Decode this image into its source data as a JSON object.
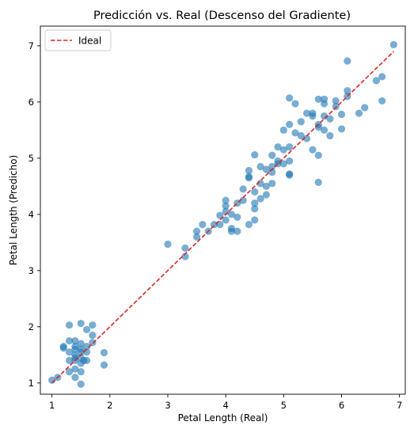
{
  "chart_data": {
    "type": "scatter",
    "title": "Predicción vs. Real (Descenso del Gradiente)",
    "xlabel": "Petal Length (Real)",
    "ylabel": "Petal Length (Predicho)",
    "xlim": [
      0.8,
      7.1
    ],
    "ylim": [
      0.8,
      7.35
    ],
    "xticks": [
      1,
      2,
      3,
      4,
      5,
      6,
      7
    ],
    "yticks": [
      1,
      2,
      3,
      4,
      5,
      6,
      7
    ],
    "grid": false,
    "legend": {
      "position": "top-left",
      "entries": [
        "Ideal"
      ]
    },
    "colors": {
      "points": "#1f77b4",
      "ideal_line": "#d62728"
    },
    "ideal_line": {
      "x": [
        1.0,
        6.9
      ],
      "y": [
        1.0,
        6.9
      ],
      "style": "dashed"
    },
    "points": [
      [
        1.0,
        1.05
      ],
      [
        1.1,
        1.1
      ],
      [
        1.2,
        1.62
      ],
      [
        1.2,
        1.65
      ],
      [
        1.3,
        1.2
      ],
      [
        1.3,
        1.4
      ],
      [
        1.3,
        1.55
      ],
      [
        1.3,
        1.75
      ],
      [
        1.3,
        2.03
      ],
      [
        1.4,
        1.1
      ],
      [
        1.4,
        1.25
      ],
      [
        1.4,
        1.4
      ],
      [
        1.4,
        1.5
      ],
      [
        1.4,
        1.6
      ],
      [
        1.4,
        1.65
      ],
      [
        1.4,
        1.75
      ],
      [
        1.4,
        1.45
      ],
      [
        1.5,
        0.98
      ],
      [
        1.5,
        1.2
      ],
      [
        1.5,
        1.35
      ],
      [
        1.5,
        1.45
      ],
      [
        1.5,
        1.55
      ],
      [
        1.5,
        1.6
      ],
      [
        1.5,
        1.7
      ],
      [
        1.5,
        2.06
      ],
      [
        1.55,
        1.4
      ],
      [
        1.6,
        1.4
      ],
      [
        1.6,
        1.55
      ],
      [
        1.6,
        1.65
      ],
      [
        1.6,
        1.95
      ],
      [
        1.7,
        1.72
      ],
      [
        1.7,
        1.85
      ],
      [
        1.7,
        2.03
      ],
      [
        1.9,
        1.32
      ],
      [
        1.9,
        1.54
      ],
      [
        3.0,
        3.47
      ],
      [
        3.3,
        3.25
      ],
      [
        3.3,
        3.4
      ],
      [
        3.5,
        3.6
      ],
      [
        3.5,
        3.7
      ],
      [
        3.6,
        3.82
      ],
      [
        3.7,
        3.7
      ],
      [
        3.8,
        3.82
      ],
      [
        3.9,
        3.82
      ],
      [
        3.9,
        3.98
      ],
      [
        4.0,
        4.05
      ],
      [
        4.0,
        4.15
      ],
      [
        4.0,
        4.25
      ],
      [
        4.0,
        3.9
      ],
      [
        4.1,
        3.7
      ],
      [
        4.1,
        3.75
      ],
      [
        4.1,
        4.0
      ],
      [
        4.2,
        3.7
      ],
      [
        4.2,
        3.95
      ],
      [
        4.2,
        4.2
      ],
      [
        4.3,
        4.45
      ],
      [
        4.3,
        4.25
      ],
      [
        4.4,
        3.82
      ],
      [
        4.4,
        4.65
      ],
      [
        4.4,
        4.78
      ],
      [
        4.4,
        4.67
      ],
      [
        4.5,
        3.9
      ],
      [
        4.5,
        4.1
      ],
      [
        4.5,
        4.2
      ],
      [
        4.5,
        4.4
      ],
      [
        4.5,
        5.06
      ],
      [
        4.6,
        4.28
      ],
      [
        4.6,
        4.55
      ],
      [
        4.6,
        4.85
      ],
      [
        4.7,
        4.35
      ],
      [
        4.7,
        4.5
      ],
      [
        4.7,
        4.8
      ],
      [
        4.8,
        4.55
      ],
      [
        4.8,
        4.75
      ],
      [
        4.8,
        4.85
      ],
      [
        4.8,
        5.05
      ],
      [
        4.9,
        4.9
      ],
      [
        4.9,
        5.2
      ],
      [
        4.9,
        4.95
      ],
      [
        5.0,
        4.9
      ],
      [
        5.0,
        5.15
      ],
      [
        5.0,
        5.5
      ],
      [
        5.1,
        4.7
      ],
      [
        5.1,
        4.72
      ],
      [
        5.1,
        4.95
      ],
      [
        5.1,
        5.2
      ],
      [
        5.1,
        5.6
      ],
      [
        5.1,
        6.07
      ],
      [
        5.2,
        5.45
      ],
      [
        5.2,
        5.97
      ],
      [
        5.3,
        5.4
      ],
      [
        5.3,
        5.65
      ],
      [
        5.4,
        5.8
      ],
      [
        5.4,
        5.35
      ],
      [
        5.5,
        5.8
      ],
      [
        5.5,
        5.75
      ],
      [
        5.5,
        5.15
      ],
      [
        5.6,
        4.57
      ],
      [
        5.6,
        5.05
      ],
      [
        5.6,
        5.55
      ],
      [
        5.6,
        5.6
      ],
      [
        5.6,
        6.05
      ],
      [
        5.7,
        5.5
      ],
      [
        5.7,
        6.05
      ],
      [
        5.7,
        5.75
      ],
      [
        5.7,
        5.97
      ],
      [
        5.8,
        5.4
      ],
      [
        5.8,
        5.7
      ],
      [
        5.9,
        5.92
      ],
      [
        5.9,
        6.02
      ],
      [
        6.0,
        5.52
      ],
      [
        6.0,
        5.78
      ],
      [
        6.1,
        6.1
      ],
      [
        6.1,
        6.2
      ],
      [
        6.1,
        6.73
      ],
      [
        6.3,
        5.8
      ],
      [
        6.4,
        5.9
      ],
      [
        6.6,
        6.38
      ],
      [
        6.7,
        6.02
      ],
      [
        6.7,
        6.45
      ],
      [
        6.9,
        7.02
      ]
    ]
  }
}
